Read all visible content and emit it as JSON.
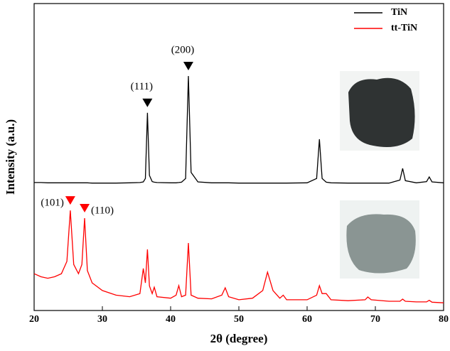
{
  "chart_data": {
    "type": "line",
    "xlabel": "2θ (degree)",
    "ylabel": "Intensity (a.u.)",
    "x": [
      20,
      21,
      22,
      23,
      24,
      24.8,
      25.3,
      25.8,
      26.5,
      27,
      27.4,
      27.8,
      28.5,
      30,
      32,
      34,
      35.5,
      36,
      36.3,
      36.6,
      36.9,
      37.3,
      37.6,
      38,
      40,
      40.8,
      41.2,
      41.6,
      42.2,
      42.6,
      43,
      44,
      46,
      47.5,
      48,
      48.5,
      50,
      52,
      53.5,
      54.2,
      55,
      56,
      56.5,
      57,
      60,
      61.4,
      61.8,
      62.2,
      62.8,
      63.5,
      66,
      68.5,
      68.9,
      69.4,
      72,
      73.6,
      74,
      74.4,
      76,
      77.5,
      77.9,
      78.3,
      80
    ],
    "series": [
      {
        "name": "TiN",
        "color": "#000000",
        "values": [
          41.7,
          41.7,
          41.6,
          41.6,
          41.6,
          41.6,
          41.6,
          41.6,
          41.6,
          41.6,
          41.6,
          41.6,
          41.5,
          41.5,
          41.5,
          41.6,
          41.7,
          41.9,
          43,
          64.4,
          44,
          42,
          41.8,
          41.7,
          41.6,
          41.6,
          41.7,
          41.8,
          43,
          76.4,
          45,
          41.9,
          41.6,
          41.6,
          41.6,
          41.6,
          41.5,
          41.5,
          41.5,
          41.5,
          41.5,
          41.5,
          41.5,
          41.5,
          41.6,
          43,
          55.8,
          43,
          41.8,
          41.6,
          41.5,
          41.5,
          41.5,
          41.5,
          41.5,
          42.5,
          46.3,
          42.3,
          41.6,
          42,
          43.5,
          41.9,
          41.6
        ],
        "annotations": [
          {
            "text": "(111)",
            "x": 36.6
          },
          {
            "text": "(200)",
            "x": 42.6
          }
        ]
      },
      {
        "name": "tt-TiN",
        "color": "#ff0000",
        "values": [
          12,
          11,
          10.5,
          11,
          12,
          16,
          32.6,
          15,
          12,
          15,
          30.1,
          13,
          9,
          6.5,
          5,
          4.5,
          5.5,
          13.7,
          9,
          19.9,
          8,
          5.5,
          7.6,
          4.5,
          4,
          5,
          8.1,
          4.5,
          5,
          22,
          5,
          4,
          3.8,
          5,
          7.4,
          4.5,
          3.5,
          4,
          6.5,
          12.5,
          6.5,
          4,
          5,
          3.5,
          3.5,
          5,
          8.1,
          5.5,
          5.5,
          3.5,
          3.2,
          3.5,
          4.4,
          3.5,
          3,
          3,
          3.7,
          3,
          2.8,
          2.8,
          3.3,
          2.7,
          2.5
        ],
        "annotations": [
          {
            "text": "(101)",
            "x": 25.3
          },
          {
            "text": "(110)",
            "x": 27.4
          }
        ]
      }
    ],
    "xlim": [
      20,
      80
    ],
    "xticks": [
      20,
      30,
      40,
      50,
      60,
      70,
      80
    ],
    "ylim": [
      0,
      100
    ],
    "legend": "upper right"
  }
}
